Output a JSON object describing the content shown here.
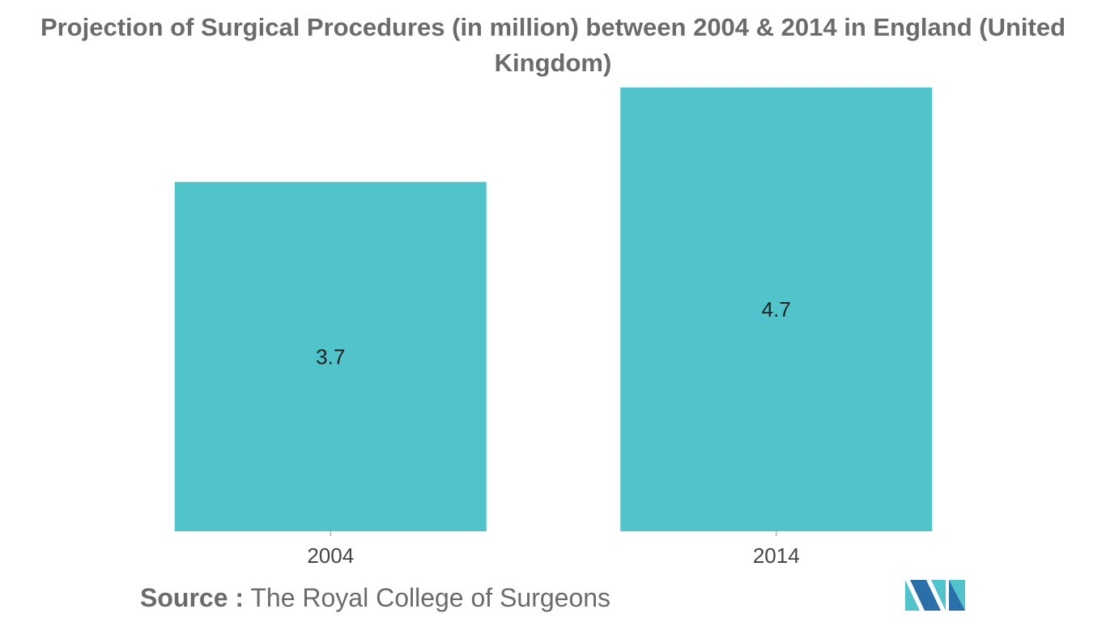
{
  "chart_data": {
    "type": "bar",
    "title": "Projection of Surgical Procedures (in million) between 2004 & 2014 in England (United Kingdom)",
    "categories": [
      "2004",
      "2014"
    ],
    "values": [
      3.7,
      4.7
    ],
    "value_labels": [
      "3.7",
      "4.7"
    ],
    "xlabel": "",
    "ylabel": "",
    "ylim": [
      0,
      4.7
    ],
    "grid": false,
    "legend": "none"
  },
  "source": {
    "label": "Source :",
    "text": "The Royal College of Surgeons"
  },
  "logo": {
    "icon": "mordor-logo-icon"
  },
  "colors": {
    "bar": "#51c3ca",
    "title": "#6b6b6b",
    "logo_dark": "#2a6fa8",
    "logo_light": "#51c3ca"
  }
}
